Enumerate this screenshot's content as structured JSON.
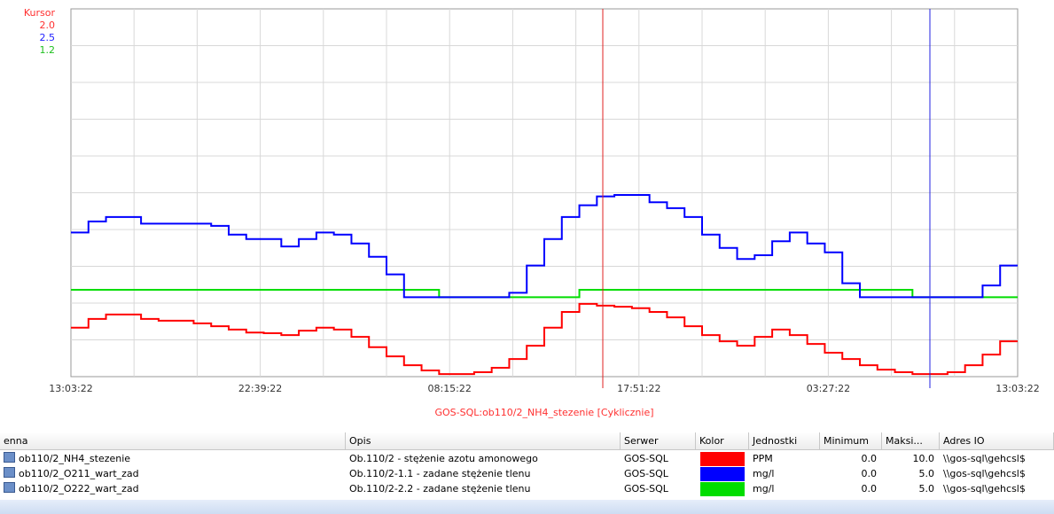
{
  "trend": {
    "cursor_label": "Kursor",
    "cursor_values": [
      "2.0",
      "2.5",
      "1.2"
    ],
    "time_labels": [
      "13:03:22",
      "22:39:22",
      "08:15:22",
      "17:51:22",
      "03:27:22",
      "13:03:22"
    ],
    "caption": "GOS-SQL:ob110/2_NH4_stezenie [Cyklicznie]",
    "series": [
      {
        "name": "ob110/2_NH4_stezenie",
        "color": "#ff0000",
        "ylim": [
          0,
          10
        ],
        "values": [
          1.33,
          1.57,
          1.69,
          1.69,
          1.57,
          1.52,
          1.52,
          1.45,
          1.37,
          1.28,
          1.2,
          1.18,
          1.13,
          1.25,
          1.33,
          1.28,
          1.08,
          0.8,
          0.55,
          0.31,
          0.17,
          0.07,
          0.07,
          0.12,
          0.24,
          0.48,
          0.84,
          1.33,
          1.76,
          1.98,
          1.93,
          1.9,
          1.86,
          1.76,
          1.61,
          1.37,
          1.13,
          0.96,
          0.84,
          1.08,
          1.28,
          1.13,
          0.89,
          0.65,
          0.48,
          0.31,
          0.19,
          0.12,
          0.07,
          0.07,
          0.12,
          0.31,
          0.6,
          0.96
        ]
      },
      {
        "name": "ob110/2_O211_wart_zad",
        "color": "#0000ff",
        "ylim": [
          0,
          5
        ],
        "values": [
          1.96,
          2.11,
          2.17,
          2.17,
          2.08,
          2.08,
          2.08,
          2.08,
          2.05,
          1.93,
          1.87,
          1.87,
          1.77,
          1.87,
          1.96,
          1.93,
          1.81,
          1.63,
          1.39,
          1.08,
          1.08,
          1.08,
          1.08,
          1.08,
          1.08,
          1.14,
          1.51,
          1.87,
          2.17,
          2.33,
          2.45,
          2.47,
          2.47,
          2.37,
          2.29,
          2.17,
          1.93,
          1.75,
          1.6,
          1.65,
          1.84,
          1.96,
          1.81,
          1.69,
          1.27,
          1.08,
          1.08,
          1.08,
          1.08,
          1.08,
          1.08,
          1.08,
          1.24,
          1.51
        ]
      },
      {
        "name": "ob110/2_O222_wart_zad",
        "color": "#00dd00",
        "ylim": [
          0,
          5
        ],
        "values": [
          1.18,
          1.18,
          1.18,
          1.18,
          1.18,
          1.18,
          1.18,
          1.18,
          1.18,
          1.18,
          1.18,
          1.18,
          1.18,
          1.18,
          1.18,
          1.18,
          1.18,
          1.18,
          1.18,
          1.18,
          1.18,
          1.08,
          1.08,
          1.08,
          1.08,
          1.08,
          1.08,
          1.08,
          1.08,
          1.18,
          1.18,
          1.18,
          1.18,
          1.18,
          1.18,
          1.18,
          1.18,
          1.18,
          1.18,
          1.18,
          1.18,
          1.18,
          1.18,
          1.18,
          1.18,
          1.18,
          1.18,
          1.18,
          1.08,
          1.08,
          1.08,
          1.08,
          1.08,
          1.08
        ]
      }
    ]
  },
  "table": {
    "columns": [
      "enna",
      "Opis",
      "Serwer",
      "Kolor",
      "Jednostki",
      "Minimum",
      "Maksi...",
      "Adres IO"
    ],
    "rows": [
      [
        "ob110/2_NH4_stezenie",
        "Ob.110/2 - stężenie azotu amonowego",
        "GOS-SQL",
        "PPM",
        "0.0",
        "10.0",
        "\\\\gos-sql\\gehcsl$"
      ],
      [
        "ob110/2_O211_wart_zad",
        "Ob.110/2-1.1 - zadane stężenie tlenu",
        "GOS-SQL",
        "mg/l",
        "0.0",
        "5.0",
        "\\\\gos-sql\\gehcsl$"
      ],
      [
        "ob110/2_O222_wart_zad",
        "Ob.110/2-2.2 - zadane stężenie tlenu",
        "GOS-SQL",
        "mg/l",
        "0.0",
        "5.0",
        "\\\\gos-sql\\gehcsl$"
      ]
    ]
  }
}
